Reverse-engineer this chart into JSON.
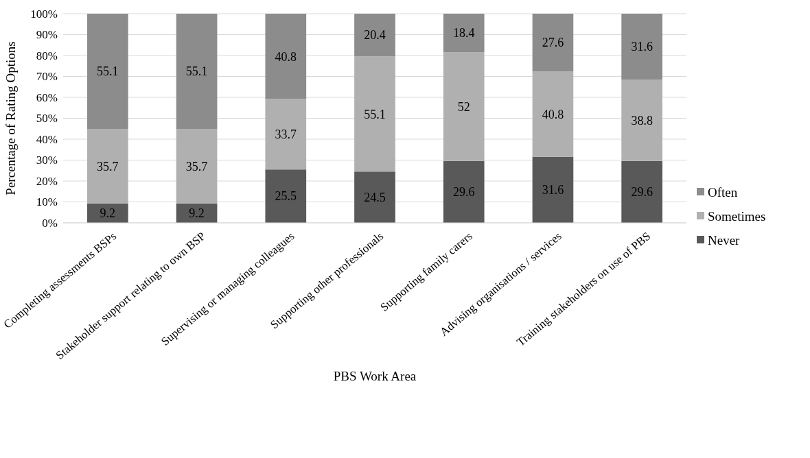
{
  "chart_data": {
    "type": "bar",
    "stacked": true,
    "xlabel": "PBS Work Area",
    "ylabel": "Percentage of Rating Options",
    "categories": [
      "Completing assessments  BSPs",
      "Stakeholder support relating to own BSP",
      "Supervising or managing colleagues",
      "Supporting other professionals",
      "Supporting family carers",
      "Advising organisations / services",
      "Training stakeholders on use of PBS"
    ],
    "series": [
      {
        "name": "Never",
        "color": "#595959",
        "values": [
          9.2,
          9.2,
          25.5,
          24.5,
          29.6,
          31.6,
          29.6
        ]
      },
      {
        "name": "Sometimes",
        "color": "#b0b0b0",
        "values": [
          35.7,
          35.7,
          33.7,
          55.1,
          52,
          40.8,
          38.8
        ]
      },
      {
        "name": "Often",
        "color": "#8c8c8c",
        "values": [
          55.1,
          55.1,
          40.8,
          20.4,
          18.4,
          27.6,
          31.6
        ]
      }
    ],
    "ylim": [
      0,
      100
    ],
    "yticks": [
      {
        "value": 0,
        "label": "0%"
      },
      {
        "value": 10,
        "label": "10%"
      },
      {
        "value": 20,
        "label": "20%"
      },
      {
        "value": 30,
        "label": "30%"
      },
      {
        "value": 40,
        "label": "40%"
      },
      {
        "value": 50,
        "label": "50%"
      },
      {
        "value": 60,
        "label": "60%"
      },
      {
        "value": 70,
        "label": "70%"
      },
      {
        "value": 80,
        "label": "80%"
      },
      {
        "value": 90,
        "label": "90%"
      },
      {
        "value": 100,
        "label": "100%"
      }
    ],
    "grid": "y",
    "legend": "right",
    "data_labels": true
  }
}
